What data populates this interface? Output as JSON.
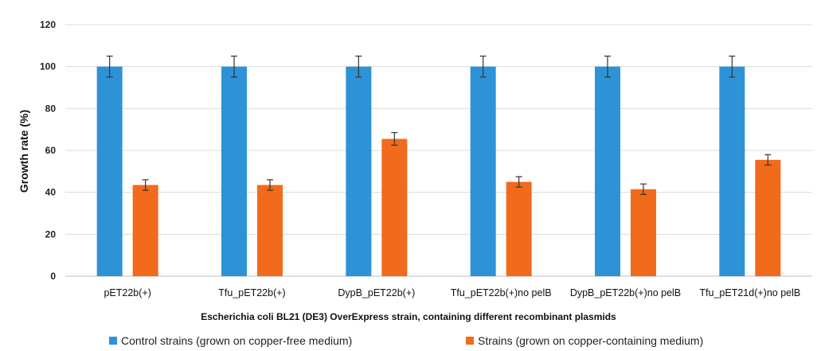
{
  "chart_data": {
    "type": "bar",
    "categories": [
      "pET22b(+)",
      "Tfu_pET22b(+)",
      "DypB_pET22b(+)",
      "Tfu_pET22b(+)no pelB",
      "DypB_pET22b(+)no pelB",
      "Tfu_pET21d(+)no pelB"
    ],
    "series": [
      {
        "name": "Control strains (grown on copper-free medium)",
        "color": "#2E93D6",
        "values": [
          100,
          100,
          100,
          100,
          100,
          100
        ],
        "errors": [
          5,
          5,
          5,
          5,
          5,
          5
        ]
      },
      {
        "name": "Strains (grown on copper-containing medium)",
        "color": "#F26A1B",
        "values": [
          43.5,
          43.5,
          65.5,
          45,
          41.5,
          55.5
        ],
        "errors": [
          2.5,
          2.5,
          3,
          2.5,
          2.5,
          2.5
        ]
      }
    ],
    "xlabel": "Escherichia coli BL21 (DE3) OverExpress  strain, containing different recombinant plasmids",
    "ylabel": "Growth rate (%)",
    "ylim": [
      0,
      120
    ],
    "yticks": [
      "0",
      "20",
      "40",
      "60",
      "80",
      "100",
      "120"
    ],
    "grid": true,
    "legend_position": "bottom"
  }
}
